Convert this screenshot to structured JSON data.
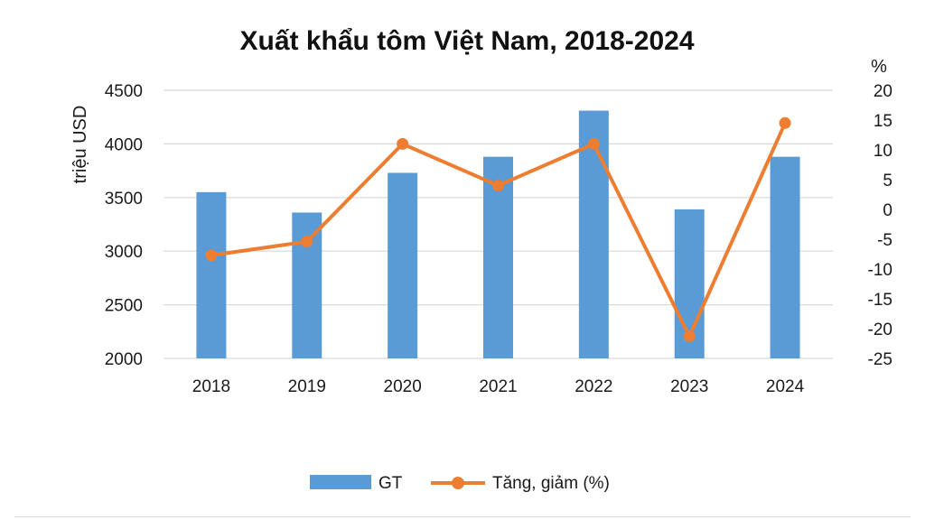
{
  "chart_data": {
    "type": "bar",
    "title": "Xuất khẩu tôm Việt Nam, 2018-2024",
    "categories": [
      "2018",
      "2019",
      "2020",
      "2021",
      "2022",
      "2023",
      "2024"
    ],
    "ylabel": "triệu USD",
    "ylim": [
      2000,
      4500
    ],
    "yticks": [
      "4500",
      "4000",
      "3500",
      "3000",
      "2500",
      "2000"
    ],
    "y2label": "%",
    "y2lim": [
      -25,
      20
    ],
    "y2ticks": [
      "20",
      "15",
      "10",
      "5",
      "0",
      "-5",
      "-10",
      "-15",
      "-20",
      "-25"
    ],
    "grid": true,
    "legend_position": "bottom",
    "series": [
      {
        "name": "GT",
        "type": "bar",
        "axis": "left",
        "color": "#5b9bd5",
        "values": [
          3550,
          3360,
          3730,
          3880,
          4310,
          3390,
          3880
        ]
      },
      {
        "name": "Tăng, giảm (%)",
        "type": "line",
        "axis": "right",
        "color": "#ed7d31",
        "values": [
          -7.7,
          -5.4,
          11.0,
          4.0,
          11.0,
          -21.3,
          14.5
        ]
      }
    ]
  }
}
